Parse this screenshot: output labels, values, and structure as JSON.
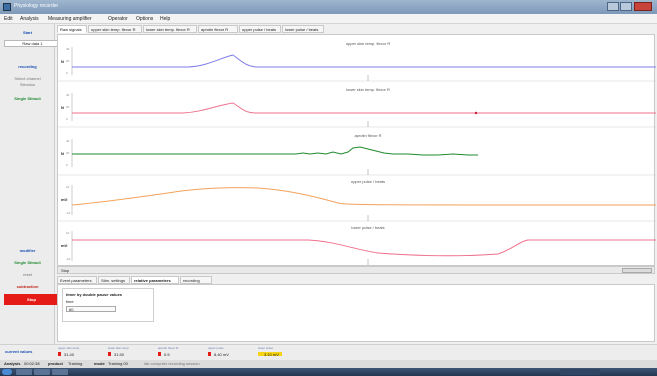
{
  "window": {
    "title": "Physiology recorder"
  },
  "menu": [
    "Edit",
    "Analysis",
    "Measuring amplifier",
    "Operator",
    "Options",
    "Help"
  ],
  "sidebar": {
    "start_label": "Start",
    "preset_value": "Raw data 1",
    "recording_label": "recording",
    "status_1": "Select channel",
    "status_2": "Stimulus",
    "single_stimulus_label": "Single Stimuli",
    "modifier_label": "modifier",
    "single_stimulus_label_2": "Single Stimuli",
    "reset_label": "reset",
    "subtraction_label": "subtraction",
    "stop_label": "Stop"
  },
  "tabs": [
    "Raw signals",
    "upper skin temp. flexor R",
    "lower skin temp. flexor R",
    "aprotin flexor R",
    "upper pulse / beats",
    "lower pulse / beats"
  ],
  "plots": [
    {
      "title": "upper skin temp. flexor R",
      "ylabel": "N",
      "ticks": [
        "40",
        "20",
        "0"
      ]
    },
    {
      "title": "lower skin temp. flexor R",
      "ylabel": "N",
      "ticks": [
        "40",
        "20",
        "0"
      ]
    },
    {
      "title": "aprotin flexor R",
      "ylabel": "N",
      "ticks": [
        "40",
        "20",
        "0"
      ]
    },
    {
      "title": "upper pulse / beats",
      "ylabel": "mV",
      "ticks": [
        "10",
        "0",
        "-10"
      ]
    },
    {
      "title": "lower pulse / beats",
      "ylabel": "mV",
      "ticks": [
        "10",
        "0",
        "-10"
      ]
    }
  ],
  "scrollbar": {
    "label": "Stop",
    "button_label": ""
  },
  "bottom_tabs": [
    "Event parameters",
    "Stim. settings",
    "relative parameters",
    "recording"
  ],
  "bottom_panel": {
    "group_label": "timer by double pause values",
    "field_label": "time",
    "field_value": "60"
  },
  "current_values": {
    "label": "current values",
    "items": [
      {
        "name": "upper skin temp",
        "value": "31.40",
        "color": "#e41b17"
      },
      {
        "name": "lower skin temp",
        "value": "31.50",
        "color": "#e41b17"
      },
      {
        "name": "aprotin flexor R",
        "value": "0.5",
        "color": "#e41b17"
      },
      {
        "name": "upper pulse",
        "value": "8.40 mV",
        "color": "#e41b17"
      },
      {
        "name": "lower pulse",
        "value": "3.10 mV",
        "color": "#f5d415"
      }
    ]
  },
  "footer": {
    "status_label": "Analysis",
    "status_value": "00:02:38",
    "product_label": "product",
    "product_value": "Training",
    "mode_label": "mode",
    "mode_value": "Training 00",
    "note": "lab computer recording session"
  },
  "colors": {
    "trace_1": "#7d7de8",
    "trace_2": "#ef6f8c",
    "trace_3": "#1f8a2e",
    "trace_4": "#f2a25c",
    "trace_5": "#ef6f8c",
    "stop_button": "#e41b17"
  }
}
